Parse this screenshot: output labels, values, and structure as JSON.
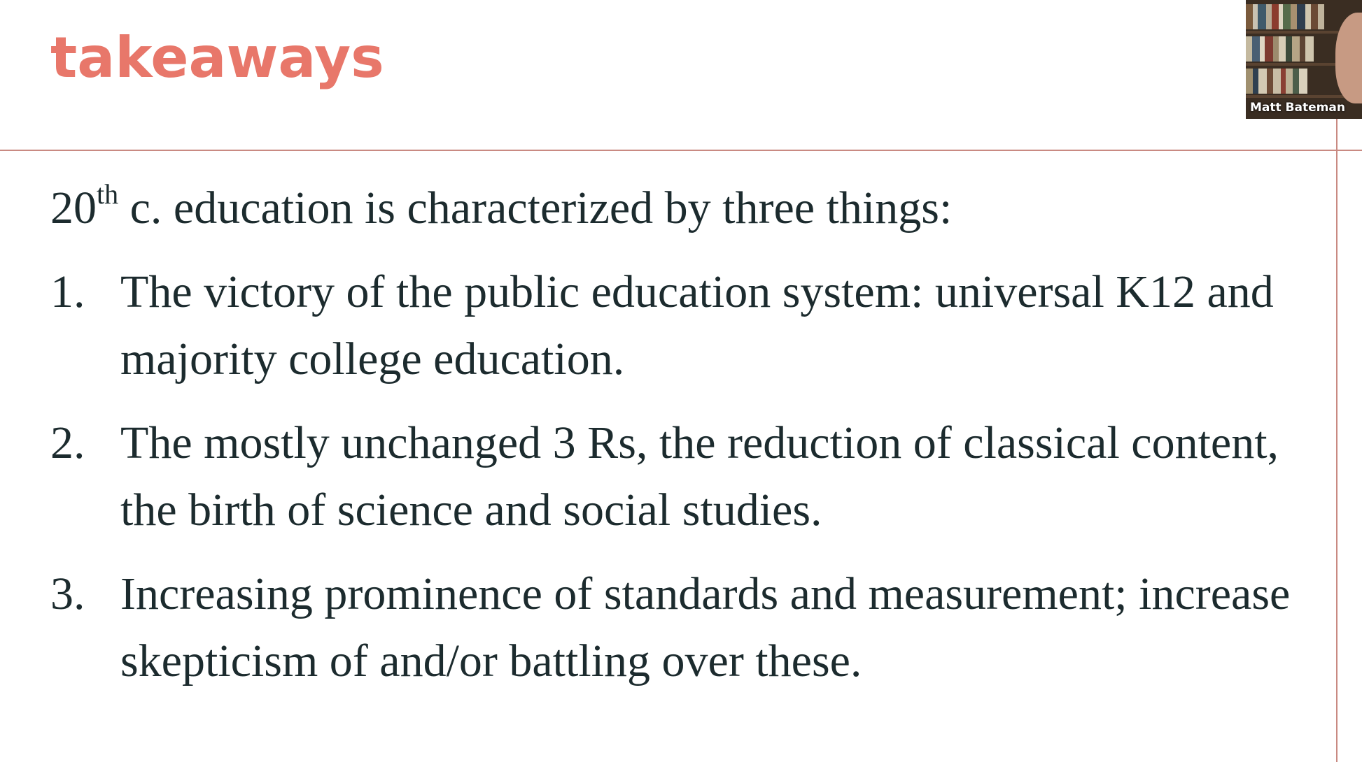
{
  "slide": {
    "title": "takeaways",
    "intro_prefix": "20",
    "intro_sup": "th",
    "intro_rest": " c. education is characterized by three things:",
    "points": [
      {
        "num": "1.",
        "text": "The victory of the public education system: universal K12 and majority college education."
      },
      {
        "num": "2.",
        "text": "The mostly unchanged 3 Rs, the reduction of classical content, the birth of science and social studies."
      },
      {
        "num": "3.",
        "text": "Increasing prominence of standards and measurement; increase skepticism of and/or battling over these."
      }
    ]
  },
  "video_tile": {
    "participant_name": "Matt Bateman"
  },
  "colors": {
    "title": "#e8776a",
    "body_text": "#1c2b2e",
    "rule": "#c98a82",
    "background": "#ffffff"
  }
}
